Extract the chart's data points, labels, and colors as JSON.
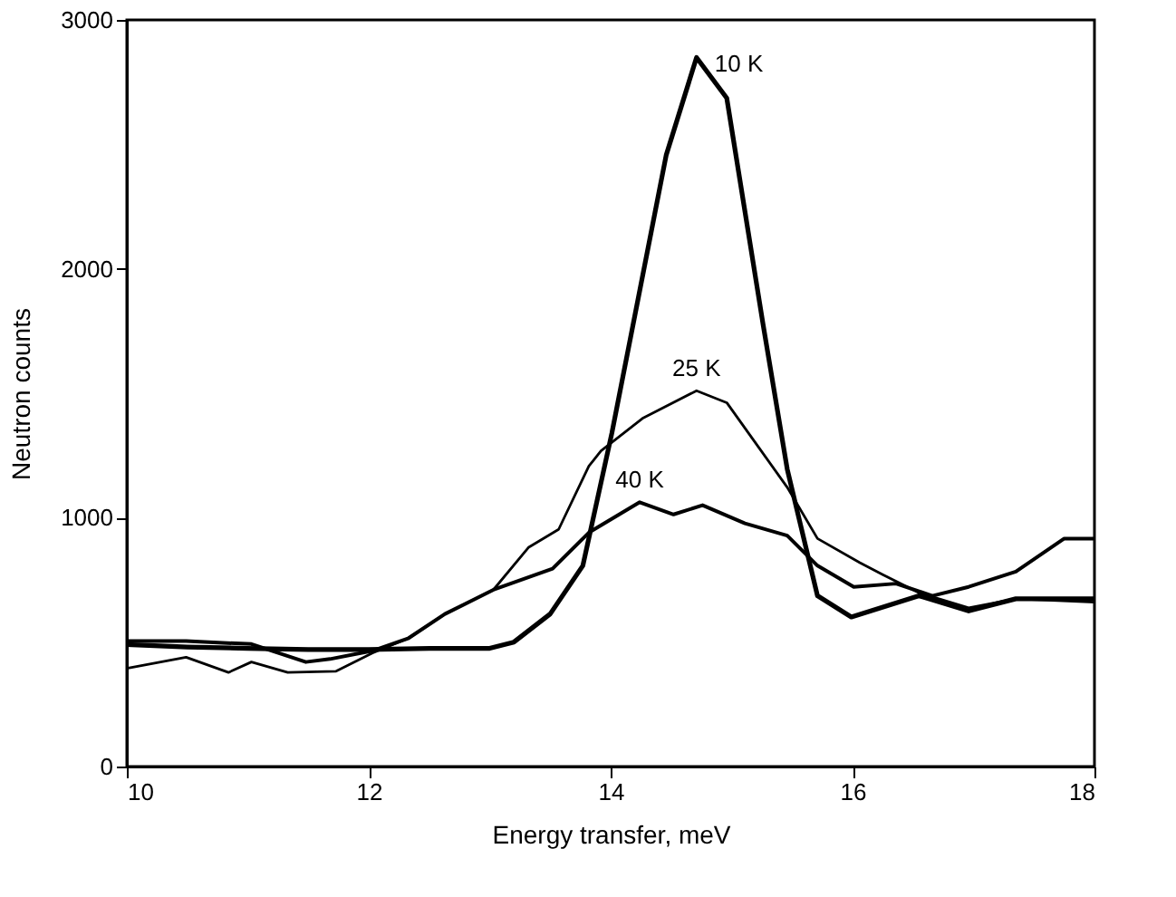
{
  "chart_data": {
    "type": "line",
    "xlabel": "Energy transfer, meV",
    "ylabel": "Neutron counts",
    "xlim": [
      10,
      18
    ],
    "xticks": [
      10,
      12,
      14,
      16,
      18
    ],
    "ylim": [
      0,
      3000
    ],
    "yticks": [
      0,
      1000,
      2000,
      3000
    ],
    "grid": false,
    "marker": "none",
    "line_style": "solid",
    "series": [
      {
        "name": "10 K",
        "color": "#000000",
        "x": [
          10,
          10.5,
          11,
          11.5,
          12,
          12.5,
          13,
          13.2,
          13.5,
          13.77,
          14.01,
          14.46,
          14.71,
          14.96,
          15.26,
          15.46,
          15.71,
          15.99,
          16.55,
          16.96,
          17.35,
          18
        ],
        "values": [
          490,
          480,
          475,
          470,
          470,
          475,
          475,
          500,
          613,
          807,
          1340,
          2458,
          2849,
          2686,
          1777,
          1195,
          686,
          601,
          686,
          625,
          674,
          674
        ]
      },
      {
        "name": "25 K",
        "color": "#000000",
        "x": [
          10,
          10.49,
          10.84,
          11.03,
          11.33,
          11.73,
          12.03,
          12.33,
          12.63,
          13.03,
          13.32,
          13.57,
          13.82,
          13.92,
          14.27,
          14.71,
          14.96,
          15.21,
          15.46,
          15.71,
          16.06,
          16.25,
          16.55,
          16.96,
          17.35,
          18
        ],
        "values": [
          395,
          439,
          378,
          420,
          378,
          383,
          456,
          516,
          613,
          710,
          880,
          953,
          1207,
          1268,
          1401,
          1510,
          1462,
          1292,
          1122,
          916,
          819,
          771,
          698,
          638,
          674,
          660
        ]
      },
      {
        "name": "40 K",
        "color": "#000000",
        "x": [
          10,
          10.49,
          11.03,
          11.48,
          11.68,
          12.03,
          12.33,
          12.63,
          13.03,
          13.52,
          13.82,
          14.24,
          14.52,
          14.76,
          15.11,
          15.46,
          15.71,
          16.01,
          16.36,
          16.66,
          16.96,
          17.35,
          17.75,
          18
        ],
        "values": [
          504,
          504,
          492,
          420,
          432,
          465,
          516,
          613,
          710,
          795,
          940,
          1062,
          1013,
          1050,
          977,
          928,
          807,
          722,
          735,
          686,
          722,
          783,
          916,
          916
        ]
      }
    ]
  }
}
